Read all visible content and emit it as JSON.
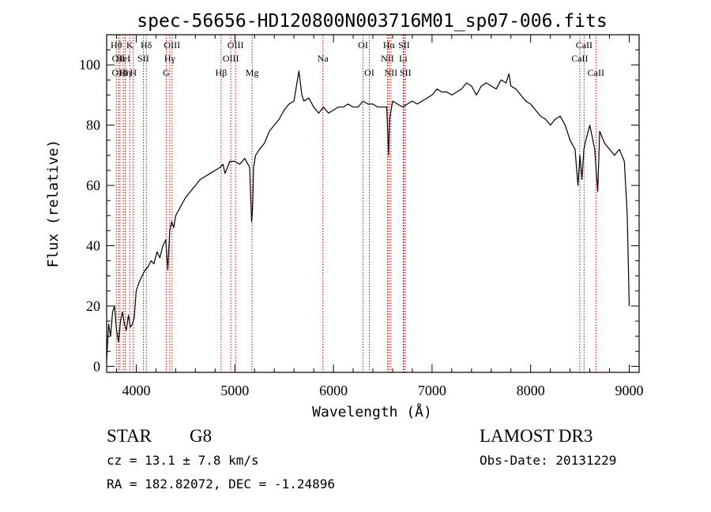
{
  "chart_data": {
    "type": "line",
    "title": "spec-56656-HD120800N003716M01_sp07-006.fits",
    "xlabel": "Wavelength (Å)",
    "ylabel": "Flux (relative)",
    "xlim": [
      3700,
      9100
    ],
    "ylim": [
      -2,
      110
    ],
    "x_ticks": [
      4000,
      5000,
      6000,
      7000,
      8000,
      9000
    ],
    "y_ticks": [
      0,
      20,
      40,
      60,
      80,
      100
    ],
    "grid": false,
    "series": [
      {
        "x": [
          3700,
          3720,
          3740,
          3760,
          3780,
          3800,
          3820,
          3840,
          3860,
          3880,
          3900,
          3920,
          3940,
          3960,
          3980,
          4000,
          4030,
          4060,
          4090,
          4120,
          4150,
          4180,
          4210,
          4240,
          4270,
          4300,
          4320,
          4340,
          4360,
          4380,
          4400,
          4450,
          4500,
          4550,
          4600,
          4650,
          4700,
          4750,
          4800,
          4850,
          4880,
          4900,
          4950,
          5000,
          5050,
          5100,
          5150,
          5170,
          5180,
          5190,
          5210,
          5250,
          5300,
          5350,
          5400,
          5450,
          5500,
          5550,
          5600,
          5650,
          5680,
          5700,
          5750,
          5800,
          5850,
          5900,
          5950,
          6000,
          6050,
          6100,
          6150,
          6200,
          6250,
          6300,
          6350,
          6400,
          6450,
          6500,
          6540,
          6560,
          6570,
          6600,
          6650,
          6700,
          6750,
          6800,
          6850,
          6900,
          6950,
          7000,
          7050,
          7100,
          7150,
          7200,
          7250,
          7300,
          7350,
          7400,
          7450,
          7500,
          7550,
          7600,
          7650,
          7700,
          7750,
          7780,
          7800,
          7850,
          7900,
          7950,
          8000,
          8050,
          8100,
          8150,
          8200,
          8250,
          8300,
          8350,
          8400,
          8450,
          8480,
          8500,
          8520,
          8540,
          8560,
          8600,
          8650,
          8680,
          8700,
          8750,
          8800,
          8850,
          8900,
          8950,
          8980,
          9000
        ],
        "y": [
          2,
          14,
          10,
          18,
          20,
          12,
          8,
          15,
          18,
          14,
          12,
          17,
          13,
          14,
          16,
          25,
          28,
          30,
          32,
          33,
          35,
          34,
          38,
          36,
          40,
          42,
          32,
          45,
          48,
          46,
          50,
          53,
          56,
          58,
          60,
          62,
          63,
          64,
          65,
          66,
          67,
          64,
          68,
          68,
          67,
          69,
          66,
          48,
          52,
          66,
          70,
          72,
          74,
          78,
          80,
          82,
          85,
          87,
          88,
          98,
          90,
          88,
          89,
          86,
          84,
          86,
          84,
          85,
          86,
          86,
          87,
          86,
          86,
          88,
          87,
          87,
          86,
          86,
          86,
          70,
          82,
          88,
          87,
          86,
          87,
          88,
          87,
          88,
          89,
          90,
          92,
          91,
          91,
          90,
          91,
          92,
          94,
          93,
          90,
          93,
          94,
          93,
          92,
          95,
          94,
          97,
          93,
          92,
          90,
          88,
          87,
          85,
          83,
          82,
          80,
          82,
          83,
          80,
          75,
          72,
          60,
          70,
          62,
          72,
          75,
          80,
          72,
          58,
          78,
          74,
          72,
          70,
          72,
          68,
          50,
          20
        ]
      }
    ],
    "line_markers": [
      {
        "wl": 3798,
        "row": 0,
        "label": "Hθ"
      },
      {
        "wl": 3820,
        "row": 1,
        "label": "OII"
      },
      {
        "wl": 3835,
        "row": 2,
        "label": "OIII"
      },
      {
        "wl": 3869,
        "row": 1,
        "label": "HeI"
      },
      {
        "wl": 3889,
        "row": 2,
        "label": "Hη"
      },
      {
        "wl": 3934,
        "row": 0,
        "label": "K"
      },
      {
        "wl": 3970,
        "row": 2,
        "label": "H"
      },
      {
        "wl": 4072,
        "row": 1,
        "label": "SII"
      },
      {
        "wl": 4102,
        "row": 0,
        "label": "Hδ"
      },
      {
        "wl": 4304,
        "row": 2,
        "label": "G"
      },
      {
        "wl": 4340,
        "row": 1,
        "label": "Hγ"
      },
      {
        "wl": 4363,
        "row": 0,
        "label": "OIII"
      },
      {
        "wl": 4861,
        "row": 2,
        "label": "Hβ"
      },
      {
        "wl": 4959,
        "row": 1,
        "label": "OIII"
      },
      {
        "wl": 5007,
        "row": 0,
        "label": "OIII"
      },
      {
        "wl": 5175,
        "row": 2,
        "label": "Mg"
      },
      {
        "wl": 5893,
        "row": 1,
        "label": "Na"
      },
      {
        "wl": 6300,
        "row": 0,
        "label": "OI"
      },
      {
        "wl": 6364,
        "row": 2,
        "label": "OI"
      },
      {
        "wl": 6548,
        "row": 1,
        "label": "NII"
      },
      {
        "wl": 6563,
        "row": 0,
        "label": "Hα"
      },
      {
        "wl": 6583,
        "row": 2,
        "label": "NII"
      },
      {
        "wl": 6708,
        "row": 1,
        "label": "Li"
      },
      {
        "wl": 6716,
        "row": 0,
        "label": "SII"
      },
      {
        "wl": 6731,
        "row": 2,
        "label": "SII"
      },
      {
        "wl": 8498,
        "row": 1,
        "label": "CaII"
      },
      {
        "wl": 8542,
        "row": 0,
        "label": "CaII"
      },
      {
        "wl": 8662,
        "row": 2,
        "label": "CaII"
      }
    ]
  },
  "info": {
    "class": "STAR",
    "subclass": "G8",
    "survey": "LAMOST DR3",
    "cz": "cz = 13.1 ± 7.8 km/s",
    "obs_date": "Obs-Date: 20131229",
    "radec": "RA = 182.82072, DEC =  -1.24896"
  },
  "colors": {
    "line_marker": "#cc0000",
    "spectrum": "#000000"
  }
}
